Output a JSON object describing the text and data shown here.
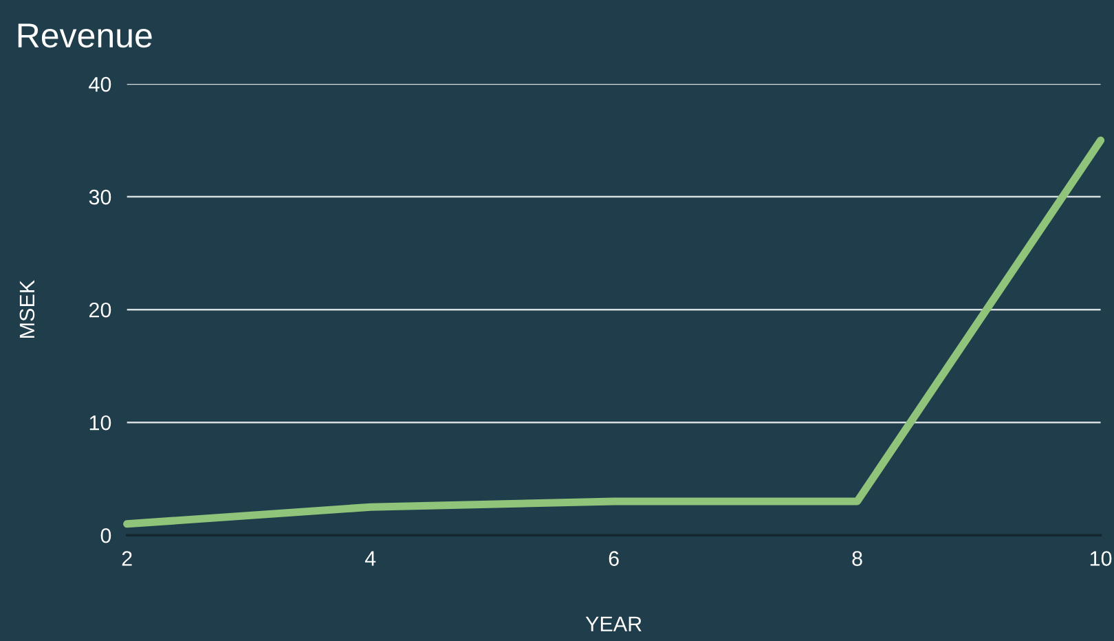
{
  "chart_data": {
    "type": "line",
    "title": "Revenue",
    "xlabel": "YEAR",
    "ylabel": "MSEK",
    "x": [
      2,
      4,
      6,
      8,
      10
    ],
    "series": [
      {
        "color": "#8fc47a",
        "values": [
          1,
          2.5,
          3,
          3,
          35
        ]
      }
    ],
    "xlim": [
      2,
      10
    ],
    "xticks": [
      2,
      4,
      6,
      8,
      10
    ],
    "ylim": [
      0,
      40
    ],
    "yticks": [
      0,
      10,
      20,
      30,
      40
    ],
    "grid": "y",
    "marker": "none",
    "line_style": "solid"
  }
}
